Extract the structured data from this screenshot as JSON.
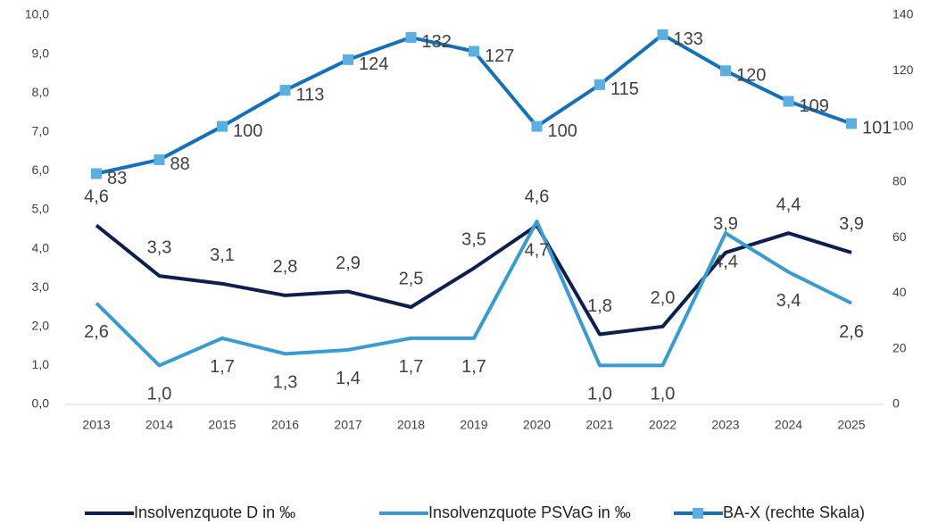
{
  "chart_data": {
    "type": "line",
    "categories": [
      "2013",
      "2014",
      "2015",
      "2016",
      "2017",
      "2018",
      "2019",
      "2020",
      "2021",
      "2022",
      "2023",
      "2024",
      "2025"
    ],
    "series": [
      {
        "name": "Insolvenzquote D in ‰",
        "color": "#0d1f4f",
        "values": [
          4.6,
          3.3,
          3.1,
          2.8,
          2.9,
          2.5,
          3.5,
          4.6,
          1.8,
          2.0,
          3.9,
          4.4,
          3.9
        ],
        "value_labels": [
          "4,6",
          "3,3",
          "3,1",
          "2,8",
          "2,9",
          "2,5",
          "3,5",
          "4,6",
          "1,8",
          "2,0",
          "3,9",
          "4,4",
          "3,9"
        ]
      },
      {
        "name": "Insolvenzquote PSVaG in ‰",
        "color": "#3a9bd0",
        "values": [
          2.6,
          1.0,
          1.7,
          1.3,
          1.4,
          1.7,
          1.7,
          4.7,
          1.0,
          1.0,
          4.4,
          3.4,
          2.6
        ],
        "value_labels": [
          "2,6",
          "1,0",
          "1,7",
          "1,3",
          "1,4",
          "1,7",
          "1,7",
          "4,7",
          "1,0",
          "1,0",
          "4,4",
          "3,4",
          "2,6"
        ]
      },
      {
        "name": "BA-X (rechte Skala)",
        "color": "#1570b7",
        "marker_color": "#5aaee0",
        "marker": "square",
        "axis": "y2",
        "values": [
          83,
          88,
          100,
          113,
          124,
          132,
          127,
          100,
          115,
          133,
          120,
          109,
          101
        ]
      }
    ],
    "ylim": [
      0,
      10
    ],
    "yticks": [
      {
        "value": 0,
        "label": "0,0"
      },
      {
        "value": 1,
        "label": "1,0"
      },
      {
        "value": 2,
        "label": "2,0"
      },
      {
        "value": 3,
        "label": "3,0"
      },
      {
        "value": 4,
        "label": "4,0"
      },
      {
        "value": 5,
        "label": "5,0"
      },
      {
        "value": 6,
        "label": "6,0"
      },
      {
        "value": 7,
        "label": "7,0"
      },
      {
        "value": 8,
        "label": "8,0"
      },
      {
        "value": 9,
        "label": "9,0"
      },
      {
        "value": 10,
        "label": "10,0"
      }
    ],
    "y2lim": [
      0,
      140
    ],
    "y2ticks": [
      0,
      20,
      40,
      60,
      80,
      100,
      120,
      140
    ],
    "grid": false,
    "legend": "bottom"
  }
}
